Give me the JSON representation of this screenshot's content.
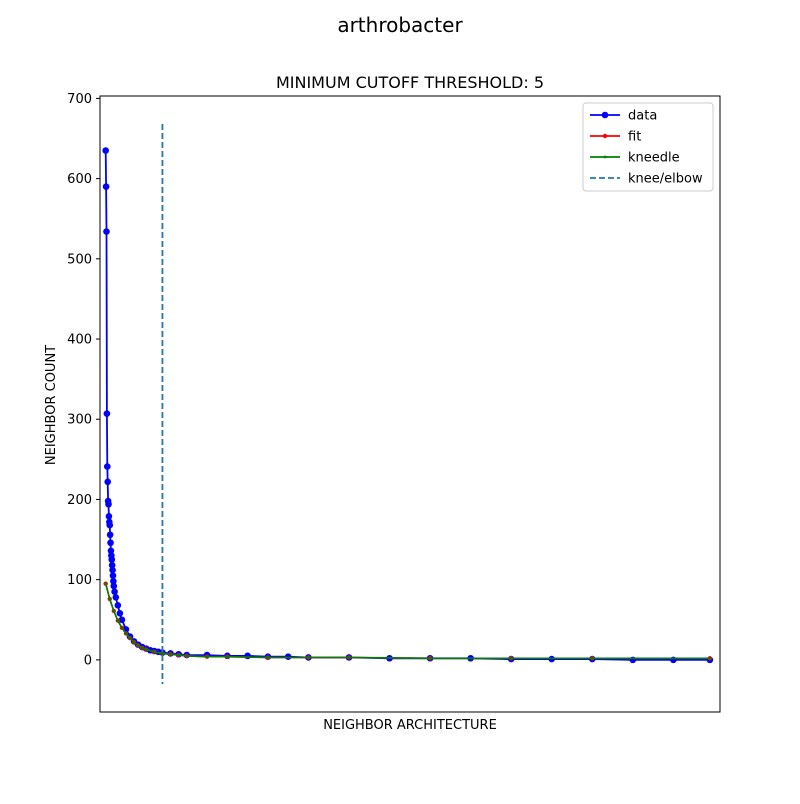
{
  "chart_data": {
    "type": "line",
    "suptitle": "arthrobacter",
    "title": "MINIMUM CUTOFF THRESHOLD: 5",
    "xlabel": "NEIGHBOR ARCHITECTURE",
    "ylabel": "NEIGHBOR COUNT",
    "xlim": [
      -14,
      1515
    ],
    "ylim": [
      -65,
      703
    ],
    "yticks": [
      0,
      100,
      200,
      300,
      400,
      500,
      600,
      700
    ],
    "x_tick_labels_shown": false,
    "grid": false,
    "legend_position": "top-right",
    "knee_x": 140,
    "series": [
      {
        "name": "data",
        "color": "#0000ff",
        "marker": "circle",
        "x": [
          0,
          1,
          2,
          3,
          4,
          5,
          6,
          7,
          8,
          9,
          10,
          11,
          12,
          13,
          14,
          15,
          16,
          17,
          18,
          19,
          20,
          22,
          25,
          30,
          35,
          40,
          50,
          60,
          70,
          80,
          90,
          100,
          110,
          120,
          130,
          140,
          160,
          180,
          200,
          250,
          300,
          350,
          400,
          450,
          500,
          600,
          700,
          800,
          900,
          1000,
          1100,
          1200,
          1300,
          1400,
          1490
        ],
        "y": [
          635,
          590,
          534,
          307,
          241,
          222,
          198,
          194,
          179,
          172,
          168,
          156,
          146,
          136,
          130,
          125,
          118,
          112,
          105,
          98,
          92,
          85,
          78,
          68,
          58,
          50,
          38,
          29,
          23,
          19,
          16,
          14,
          12,
          11,
          10,
          9,
          8,
          7,
          6,
          6,
          5,
          5,
          4,
          4,
          3,
          3,
          2,
          2,
          2,
          1,
          1,
          1,
          0,
          0,
          0
        ]
      },
      {
        "name": "fit",
        "color": "#ff0000",
        "marker": "dot",
        "x": [
          0,
          10,
          20,
          30,
          40,
          50,
          60,
          70,
          80,
          90,
          100,
          120,
          140,
          160,
          180,
          200,
          250,
          300,
          400,
          500,
          600,
          800,
          1000,
          1200,
          1490
        ],
        "y": [
          95,
          76,
          61,
          49,
          40,
          33,
          27,
          22,
          18,
          15,
          13,
          10,
          8,
          7,
          6,
          5,
          4,
          4,
          3,
          3,
          3,
          2,
          2,
          2,
          2
        ]
      },
      {
        "name": "kneedle",
        "color": "#008000",
        "marker": "small-dot",
        "x": [
          0,
          10,
          20,
          30,
          40,
          50,
          60,
          70,
          80,
          90,
          100,
          120,
          140,
          160,
          180,
          200,
          250,
          300,
          400,
          500,
          600,
          800,
          1000,
          1200,
          1490
        ],
        "y": [
          95,
          76,
          61,
          49,
          40,
          33,
          27,
          22,
          18,
          15,
          13,
          10,
          8,
          7,
          6,
          5,
          4,
          4,
          3,
          3,
          3,
          2,
          2,
          2,
          2
        ]
      },
      {
        "name": "knee/elbow",
        "color": "#1f77b4",
        "style": "dashed-vertical"
      }
    ]
  }
}
